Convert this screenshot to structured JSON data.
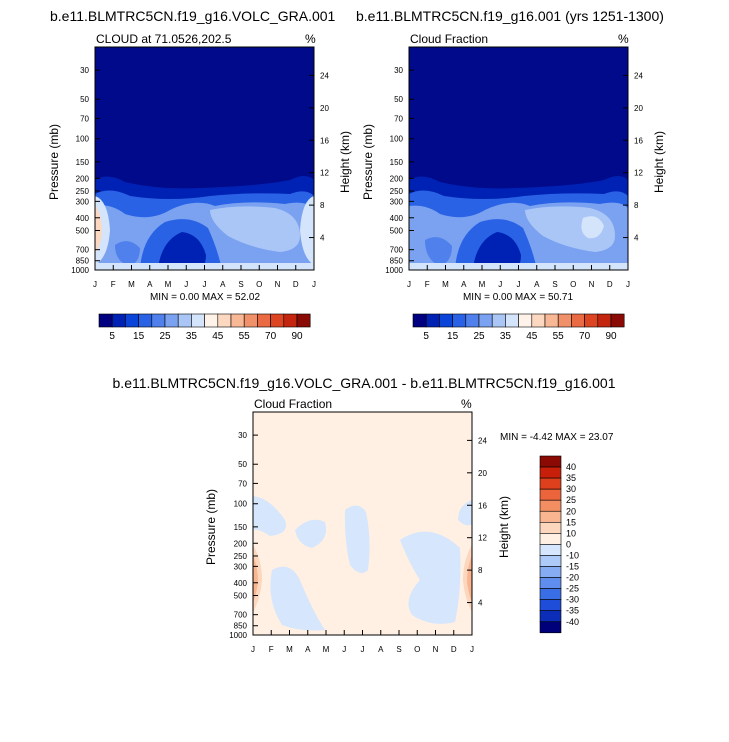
{
  "colors": {
    "levels": [
      "#000080",
      "#0022b4",
      "#0a44d8",
      "#2a62e6",
      "#4f80ec",
      "#7ba2f0",
      "#a9c6f6",
      "#d4e5fb",
      "#fff2e8",
      "#fcd8c0",
      "#f8b896",
      "#f1916a",
      "#e96a43",
      "#dc4422",
      "#c4250f",
      "#8a0b05"
    ],
    "diff_levels": [
      "#00007a",
      "#0c2db8",
      "#1e4ed9",
      "#3a6ee6",
      "#5f8eee",
      "#86acf3",
      "#aecaf8",
      "#d6e6fc",
      "#fff0e3",
      "#fcd6bd",
      "#f9b590",
      "#f38d62",
      "#eb643b",
      "#de3f1c",
      "#c81f0a",
      "#8b0a04"
    ],
    "dark": "#000a8a"
  },
  "panels": {
    "left": {
      "title": "b.e11.BLMTRC5CN.f19_g16.VOLC_GRA.001",
      "left_label": "CLOUD at 71.0526,202.5",
      "units": "%",
      "stats": "MIN =  0.00 MAX =  52.02"
    },
    "right": {
      "title": "b.e11.BLMTRC5CN.f19_g16.001 (yrs 1251-1300)",
      "left_label": "Cloud Fraction",
      "units": "%",
      "stats": "MIN =  0.00 MAX =  50.71"
    },
    "diff": {
      "title": "b.e11.BLMTRC5CN.f19_g16.VOLC_GRA.001 - b.e11.BLMTRC5CN.f19_g16.001",
      "left_label": "Cloud Fraction",
      "units": "%",
      "stats": "MIN =  -4.42 MAX =  23.07"
    }
  },
  "axes": {
    "ylabel": "Pressure (mb)",
    "ylabel_right": "Height (km)",
    "pressure_ticks": [
      "30",
      "50",
      "70",
      "100",
      "150",
      "200",
      "250",
      "300",
      "400",
      "500",
      "700",
      "850",
      "1000"
    ],
    "height_ticks": [
      "24",
      "20",
      "16",
      "12",
      "8",
      "4"
    ],
    "month_ticks": [
      "J",
      "F",
      "M",
      "A",
      "M",
      "J",
      "J",
      "A",
      "S",
      "O",
      "N",
      "D",
      "J"
    ]
  },
  "labelbar": {
    "labels": [
      "5",
      "15",
      "25",
      "35",
      "45",
      "55",
      "70",
      "90"
    ]
  },
  "diff_labelbar": {
    "labels": [
      "40",
      "35",
      "30",
      "25",
      "20",
      "15",
      "10",
      "0",
      "-10",
      "-15",
      "-20",
      "-25",
      "-30",
      "-35",
      "-40"
    ]
  },
  "chart_data": [
    {
      "type": "heatmap",
      "title": "b.e11.BLMTRC5CN.f19_g16.VOLC_GRA.001",
      "subtitle": "CLOUD at 71.0526,202.5",
      "units": "%",
      "xlabel": "",
      "ylabel": "Pressure (mb)",
      "ylabel_right": "Height (km)",
      "x": [
        "J",
        "F",
        "M",
        "A",
        "M",
        "J",
        "J",
        "A",
        "S",
        "O",
        "N",
        "D",
        "J"
      ],
      "ylim": [
        1000,
        20
      ],
      "y_scale": "log",
      "contour_levels": [
        5,
        10,
        15,
        20,
        25,
        30,
        35,
        40,
        45,
        50,
        55,
        60,
        70,
        80,
        90
      ],
      "min": 0.0,
      "max": 52.02
    },
    {
      "type": "heatmap",
      "title": "b.e11.BLMTRC5CN.f19_g16.001 (yrs 1251-1300)",
      "subtitle": "Cloud Fraction",
      "units": "%",
      "xlabel": "",
      "ylabel": "Pressure (mb)",
      "ylabel_right": "Height (km)",
      "x": [
        "J",
        "F",
        "M",
        "A",
        "M",
        "J",
        "J",
        "A",
        "S",
        "O",
        "N",
        "D",
        "J"
      ],
      "ylim": [
        1000,
        20
      ],
      "y_scale": "log",
      "contour_levels": [
        5,
        10,
        15,
        20,
        25,
        30,
        35,
        40,
        45,
        50,
        55,
        60,
        70,
        80,
        90
      ],
      "min": 0.0,
      "max": 50.71
    },
    {
      "type": "heatmap",
      "title": "b.e11.BLMTRC5CN.f19_g16.VOLC_GRA.001 - b.e11.BLMTRC5CN.f19_g16.001",
      "subtitle": "Cloud Fraction",
      "units": "%",
      "xlabel": "",
      "ylabel": "Pressure (mb)",
      "ylabel_right": "Height (km)",
      "x": [
        "J",
        "F",
        "M",
        "A",
        "M",
        "J",
        "J",
        "A",
        "S",
        "O",
        "N",
        "D",
        "J"
      ],
      "ylim": [
        1000,
        20
      ],
      "y_scale": "log",
      "contour_levels": [
        -40,
        -35,
        -30,
        -25,
        -20,
        -15,
        -10,
        0,
        10,
        15,
        20,
        25,
        30,
        35,
        40
      ],
      "min": -4.42,
      "max": 23.07
    }
  ]
}
